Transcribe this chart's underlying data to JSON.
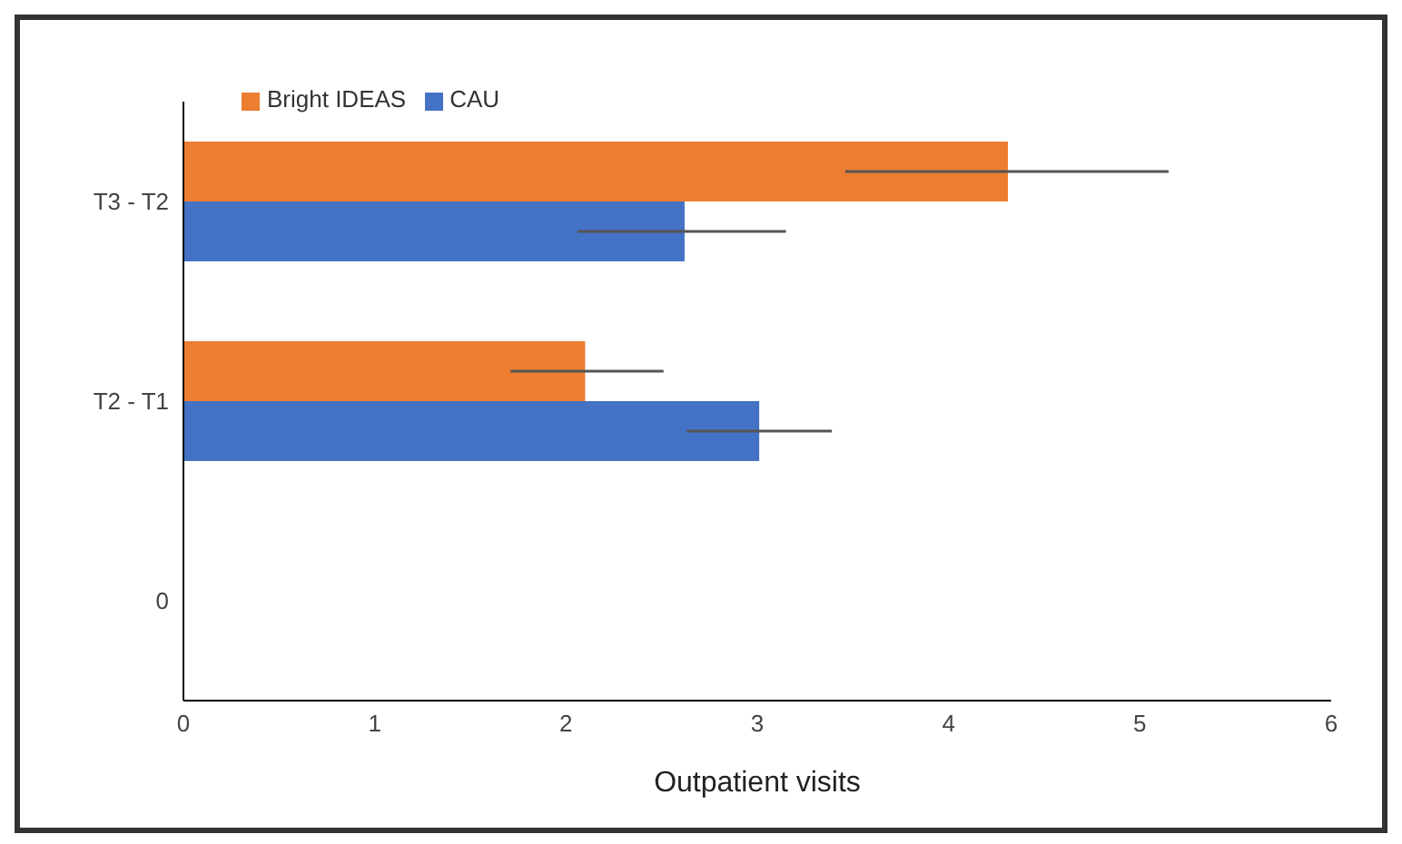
{
  "chart_data": {
    "type": "bar",
    "orientation": "horizontal",
    "xlabel": "Outpatient visits",
    "categories": [
      "T3 - T2",
      "T2 - T1",
      "0"
    ],
    "series": [
      {
        "name": "Bright IDEAS",
        "color": "#ed7d31",
        "values": [
          4.31,
          2.1,
          null
        ],
        "errors": [
          [
            3.46,
            5.15
          ],
          [
            1.71,
            2.51
          ],
          null
        ]
      },
      {
        "name": "CAU",
        "color": "#4472c4",
        "values": [
          2.62,
          3.01,
          null
        ],
        "errors": [
          [
            2.06,
            3.15
          ],
          [
            2.63,
            3.39
          ],
          null
        ]
      }
    ],
    "xlim": [
      0,
      6
    ],
    "xticks": [
      0,
      1,
      2,
      3,
      4,
      5,
      6
    ],
    "grid": false,
    "legend": "top left"
  }
}
